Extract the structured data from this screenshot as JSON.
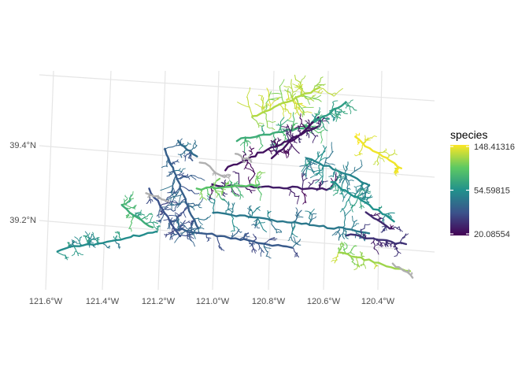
{
  "chart_data": {
    "type": "map",
    "title": "",
    "xlabel": "",
    "ylabel": "",
    "x_ticks": [
      "121.6°W",
      "121.4°W",
      "121.2°W",
      "121.0°W",
      "120.8°W",
      "120.6°W",
      "120.4°W"
    ],
    "y_ticks": [
      "39.4°N",
      "39.2°N"
    ],
    "legend": {
      "title": "species",
      "position": "right",
      "scale": "log",
      "min": 20.08554,
      "max": 148.41316,
      "breaks": [
        {
          "label": "148.41316",
          "value": 148.41316
        },
        {
          "label": "54.59815",
          "value": 54.59815
        },
        {
          "label": "20.08554",
          "value": 20.08554
        }
      ],
      "palette": [
        "#440154",
        "#3b528b",
        "#21918c",
        "#5ec962",
        "#fde725"
      ],
      "na_color": "#b0b0b0"
    },
    "grid": true
  }
}
